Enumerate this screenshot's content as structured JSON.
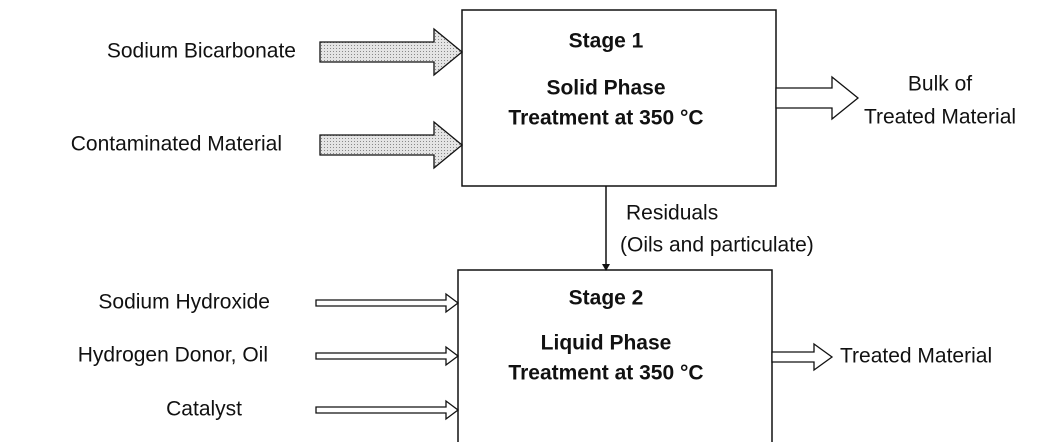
{
  "stages": [
    {
      "label": "Stage 1",
      "lines": [
        "Solid Phase",
        "Treatment at 350 °C"
      ]
    },
    {
      "label": "Stage 2",
      "lines": [
        "Liquid Phase",
        "Treatment at 350 °C"
      ]
    }
  ],
  "inputs": [
    [
      "Sodium Bicarbonate",
      "Contaminated Material"
    ],
    [
      "Sodium Hydroxide",
      "Hydrogen Donor, Oil",
      "Catalyst"
    ]
  ],
  "outputs": [
    [
      "Bulk of",
      "Treated Material"
    ],
    [
      "Treated Material"
    ]
  ],
  "link": [
    "Residuals",
    "(Oils and particulate)"
  ]
}
